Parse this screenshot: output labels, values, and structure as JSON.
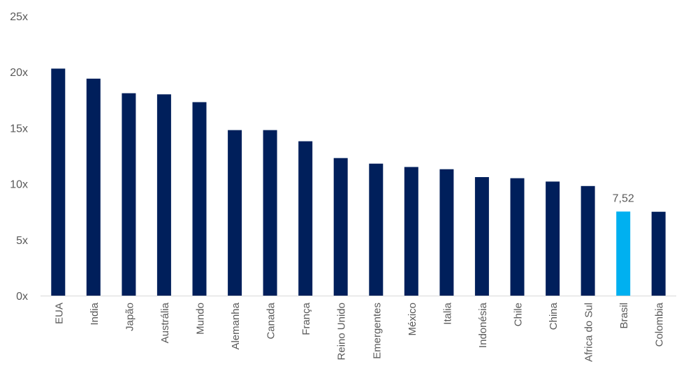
{
  "chart_data": {
    "type": "bar",
    "categories": [
      "EUA",
      "India",
      "Japão",
      "Austrália",
      "Mundo",
      "Alemanha",
      "Canada",
      "França",
      "Reino Unido",
      "Emergentes",
      "México",
      "Italia",
      "Indonésia",
      "Chile",
      "China",
      "Africa do Sul",
      "Brasil",
      "Colombia"
    ],
    "values": [
      20.3,
      19.4,
      18.1,
      18.0,
      17.3,
      14.8,
      14.8,
      13.8,
      12.3,
      11.8,
      11.5,
      11.3,
      10.6,
      10.5,
      10.2,
      9.8,
      7.52,
      7.5
    ],
    "y_ticks": [
      "0x",
      "5x",
      "10x",
      "15x",
      "20x",
      "25x"
    ],
    "ylim": [
      0,
      25
    ],
    "data_labels": [
      {
        "category": "Brasil",
        "text": "7,52"
      }
    ],
    "highlight_category": "Brasil",
    "colors": {
      "bar": "#001F5B",
      "highlight": "#00B0F0",
      "axis": "#D9D9D9",
      "text": "#595959"
    },
    "grid": false,
    "legend": "none",
    "title": "",
    "xlabel": "",
    "ylabel": ""
  }
}
